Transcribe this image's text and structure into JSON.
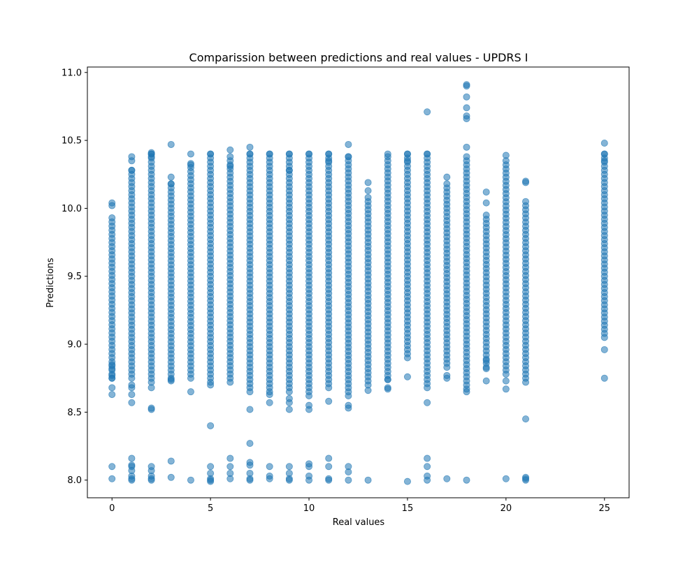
{
  "chart_data": {
    "type": "scatter",
    "title": "Comparission between predictions and real values - UPDRS I",
    "xlabel": "Real values",
    "ylabel": "Predictions",
    "xlim": [
      -1.25,
      26.25
    ],
    "ylim": [
      7.87,
      11.04
    ],
    "xticks": [
      "0",
      "5",
      "10",
      "15",
      "20",
      "25"
    ],
    "xtick_values": [
      0,
      5,
      10,
      15,
      20,
      25
    ],
    "yticks": [
      "8.0",
      "8.5",
      "9.0",
      "9.5",
      "10.0",
      "10.5",
      "11.0"
    ],
    "ytick_values": [
      8.0,
      8.5,
      9.0,
      9.5,
      10.0,
      10.5,
      11.0
    ],
    "grid": false,
    "marker_color": "#1f77b4",
    "marker_alpha": 0.55,
    "series": [
      {
        "columns": [
          {
            "x": 0,
            "band": [
              8.75,
              9.93
            ],
            "outliers": [
              10.04,
              10.02,
              8.85,
              8.82,
              8.77,
              8.75,
              8.68,
              8.63,
              8.1,
              8.01
            ]
          },
          {
            "x": 1,
            "band": [
              8.75,
              10.28
            ],
            "outliers": [
              10.38,
              10.35,
              10.28,
              8.7,
              8.68,
              8.63,
              8.57,
              8.16,
              8.11,
              8.1,
              8.07,
              8.03,
              8.01,
              8.0
            ]
          },
          {
            "x": 2,
            "band": [
              8.72,
              10.4
            ],
            "outliers": [
              10.41,
              10.4,
              10.38,
              8.68,
              8.53,
              8.52,
              8.1,
              8.07,
              8.03,
              8.01,
              8.0
            ]
          },
          {
            "x": 3,
            "band": [
              8.75,
              10.18
            ],
            "outliers": [
              10.47,
              10.23,
              10.18,
              8.74,
              8.73,
              8.14,
              8.02
            ]
          },
          {
            "x": 4,
            "band": [
              8.75,
              10.33
            ],
            "outliers": [
              10.4,
              10.32,
              8.65,
              8.0
            ]
          },
          {
            "x": 5,
            "band": [
              8.72,
              10.4
            ],
            "outliers": [
              10.4,
              8.7,
              8.4,
              8.1,
              8.05,
              8.01,
              8.0,
              7.99
            ]
          },
          {
            "x": 6,
            "band": [
              8.72,
              10.35
            ],
            "outliers": [
              10.43,
              10.38,
              10.31,
              8.16,
              8.1,
              8.05,
              8.01
            ]
          },
          {
            "x": 7,
            "band": [
              8.65,
              10.4
            ],
            "outliers": [
              10.45,
              10.4,
              8.52,
              8.27,
              8.13,
              8.11,
              8.05,
              8.01,
              8.0
            ]
          },
          {
            "x": 8,
            "band": [
              8.65,
              10.4
            ],
            "outliers": [
              10.4,
              8.63,
              8.57,
              8.1,
              8.03,
              8.01
            ]
          },
          {
            "x": 9,
            "band": [
              8.65,
              10.4
            ],
            "outliers": [
              10.4,
              10.28,
              8.6,
              8.57,
              8.52,
              8.1,
              8.05,
              8.01,
              8.0
            ]
          },
          {
            "x": 10,
            "band": [
              8.65,
              10.4
            ],
            "outliers": [
              10.4,
              8.62,
              8.55,
              8.52,
              8.12,
              8.1,
              8.03,
              8.0
            ]
          },
          {
            "x": 11,
            "band": [
              8.68,
              10.4
            ],
            "outliers": [
              10.4,
              10.35,
              8.58,
              8.16,
              8.1,
              8.01,
              8.0
            ]
          },
          {
            "x": 12,
            "band": [
              8.62,
              10.38
            ],
            "outliers": [
              10.47,
              10.38,
              8.55,
              8.53,
              8.1,
              8.06,
              8.0
            ]
          },
          {
            "x": 13,
            "band": [
              8.7,
              10.08
            ],
            "outliers": [
              10.19,
              10.13,
              8.66,
              8.0
            ]
          },
          {
            "x": 14,
            "band": [
              8.74,
              10.38
            ],
            "outliers": [
              10.4,
              8.74,
              8.68,
              8.67
            ]
          },
          {
            "x": 15,
            "band": [
              8.9,
              10.4
            ],
            "outliers": [
              10.4,
              10.35,
              8.76,
              7.99
            ]
          },
          {
            "x": 16,
            "band": [
              8.68,
              10.4
            ],
            "outliers": [
              10.71,
              10.4,
              8.57,
              8.16,
              8.1,
              8.03,
              8.0
            ]
          },
          {
            "x": 17,
            "band": [
              8.83,
              10.18
            ],
            "outliers": [
              10.23,
              8.77,
              8.75,
              8.01
            ]
          },
          {
            "x": 18,
            "band": [
              8.7,
              10.38
            ],
            "outliers": [
              10.91,
              10.9,
              10.82,
              10.74,
              10.68,
              10.66,
              10.45,
              8.67,
              8.65,
              8.0
            ]
          },
          {
            "x": 19,
            "band": [
              8.83,
              9.95
            ],
            "outliers": [
              10.12,
              10.04,
              8.88,
              8.82,
              8.73
            ]
          },
          {
            "x": 20,
            "band": [
              8.78,
              10.35
            ],
            "outliers": [
              10.39,
              8.73,
              8.67,
              8.01
            ]
          },
          {
            "x": 21,
            "band": [
              8.72,
              10.05
            ],
            "outliers": [
              10.2,
              10.19,
              8.45,
              8.02,
              8.01,
              8.0
            ]
          },
          {
            "x": 25,
            "band": [
              9.05,
              10.4
            ],
            "outliers": [
              10.48,
              10.4,
              10.35,
              8.96,
              8.75
            ]
          }
        ]
      }
    ]
  }
}
